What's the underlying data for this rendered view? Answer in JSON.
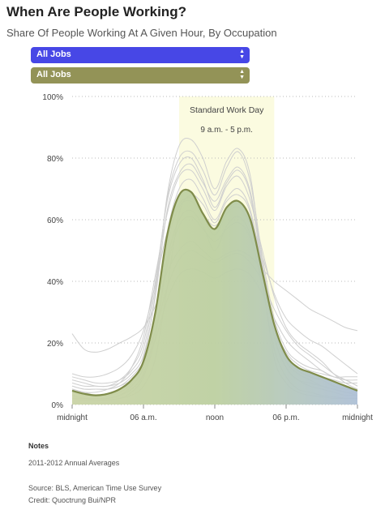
{
  "header": {
    "title": "When Are People Working?",
    "subtitle": "Share Of People Working At A Given Hour, By Occupation"
  },
  "selectors": [
    {
      "value": "All Jobs",
      "color": "#4747e6"
    },
    {
      "value": "All Jobs",
      "color": "#939357"
    }
  ],
  "chart_data": {
    "type": "area",
    "ylim": [
      0,
      100
    ],
    "xlim": [
      0,
      24
    ],
    "y_ticks": [
      "0%",
      "20%",
      "40%",
      "60%",
      "80%",
      "100%"
    ],
    "y_tick_values": [
      0,
      20,
      40,
      60,
      80,
      100
    ],
    "x_ticks": [
      "midnight",
      "06 a.m.",
      "noon",
      "06 p.m.",
      "midnight"
    ],
    "x_tick_values": [
      0,
      6,
      12,
      18,
      24
    ],
    "annotation": {
      "label": "Standard Work Day",
      "sublabel": "9 a.m. - 5 p.m.",
      "start": 9,
      "end": 17
    },
    "highlight_series": {
      "name": "All Jobs",
      "x": [
        0,
        1,
        2,
        3,
        4,
        5,
        6,
        7,
        8,
        9,
        10,
        11,
        12,
        13,
        14,
        15,
        16,
        17,
        18,
        19,
        20,
        21,
        22,
        23,
        24
      ],
      "values": [
        4.5,
        3.5,
        3,
        3.5,
        5,
        8,
        14,
        30,
        55,
        68,
        69,
        62,
        57,
        64,
        66,
        60,
        43,
        26,
        16,
        12,
        10.5,
        9,
        7.5,
        6,
        4.5
      ]
    },
    "background_series": [
      {
        "values": [
          9,
          8,
          7,
          7,
          8,
          11,
          18,
          38,
          67,
          80,
          82,
          76,
          68,
          77,
          82,
          72,
          48,
          28,
          18,
          14,
          12,
          11,
          9,
          9,
          9
        ]
      },
      {
        "values": [
          8,
          7,
          6,
          6,
          7,
          10,
          16,
          35,
          63,
          75,
          78,
          72,
          66,
          73,
          77,
          69,
          46,
          26,
          17,
          13,
          11,
          10,
          9,
          8,
          8
        ]
      },
      {
        "values": [
          3,
          2,
          2,
          2,
          3,
          6,
          12,
          27,
          52,
          64,
          66,
          61,
          55,
          62,
          64,
          58,
          42,
          22,
          12,
          8,
          6,
          5,
          4,
          3,
          3
        ]
      },
      {
        "values": [
          2,
          2,
          1.5,
          1.5,
          2,
          4,
          9,
          22,
          47,
          60,
          63,
          58,
          50,
          58,
          61,
          55,
          38,
          18,
          9,
          5,
          4,
          3,
          2.5,
          2,
          2
        ]
      },
      {
        "values": [
          5,
          4,
          4,
          5,
          7,
          12,
          22,
          42,
          62,
          74,
          76,
          70,
          63,
          71,
          74,
          66,
          50,
          35,
          25,
          20,
          17,
          14,
          10,
          7,
          5
        ]
      },
      {
        "values": [
          2,
          1.5,
          1.5,
          1.5,
          2,
          3,
          6,
          15,
          38,
          62,
          68,
          65,
          59,
          66,
          68,
          62,
          40,
          15,
          7,
          4,
          3,
          2.5,
          2,
          2,
          2
        ]
      },
      {
        "values": [
          6,
          5,
          5,
          5,
          6,
          9,
          14,
          24,
          38,
          47,
          50,
          48,
          46,
          48,
          49,
          46,
          40,
          31,
          24,
          19,
          16,
          13,
          10,
          8,
          6
        ]
      },
      {
        "values": [
          23,
          18,
          17,
          18,
          20,
          22,
          25,
          32,
          43,
          50,
          53,
          50,
          47,
          49,
          50,
          48,
          44,
          40,
          37,
          34,
          31,
          29,
          27,
          25,
          24
        ]
      },
      {
        "values": [
          7,
          6,
          6,
          6,
          8,
          12,
          20,
          40,
          66,
          78,
          80,
          73,
          64,
          72,
          76,
          68,
          44,
          24,
          16,
          12,
          10,
          9,
          8,
          7,
          7
        ]
      },
      {
        "values": [
          10,
          9,
          9,
          10,
          12,
          16,
          24,
          39,
          56,
          65,
          67,
          62,
          58,
          63,
          65,
          60,
          48,
          36,
          28,
          24,
          21,
          19,
          16,
          13,
          10
        ]
      },
      {
        "values": [
          4,
          3,
          3,
          3,
          4,
          7,
          15,
          36,
          68,
          84,
          86,
          80,
          70,
          79,
          83,
          74,
          45,
          22,
          12,
          8,
          7,
          6,
          5,
          4,
          4
        ]
      },
      {
        "values": [
          3,
          2,
          2,
          2,
          3,
          5,
          10,
          24,
          45,
          58,
          61,
          57,
          53,
          57,
          59,
          54,
          40,
          24,
          14,
          10,
          8,
          6,
          5,
          4,
          3
        ]
      },
      {
        "values": [
          6,
          5,
          5,
          5,
          6,
          8,
          12,
          21,
          34,
          42,
          44,
          43,
          41,
          43,
          44,
          42,
          36,
          28,
          21,
          17,
          14,
          11,
          9,
          8,
          6
        ]
      },
      {
        "values": [
          5,
          4,
          3,
          3,
          4,
          7,
          14,
          30,
          56,
          70,
          73,
          67,
          60,
          67,
          70,
          63,
          44,
          25,
          15,
          11,
          9,
          8,
          6,
          5,
          5
        ]
      }
    ]
  },
  "notes": {
    "heading": "Notes",
    "period": "2011-2012 Annual Averages",
    "source": "Source: BLS, American Time Use Survey",
    "credit": "Credit: Quoctrung Bui/NPR"
  }
}
